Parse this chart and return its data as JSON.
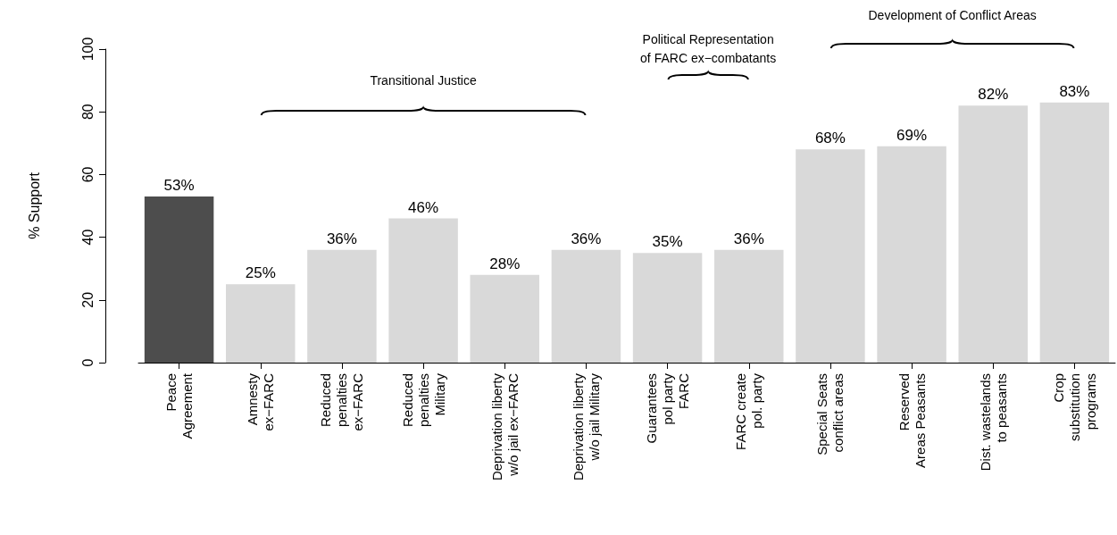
{
  "chart_data": {
    "type": "bar",
    "ylabel": "% Support",
    "categories": [
      "Peace\nAgreement",
      "Amnesty\nex−FARC",
      "Reduced\npenalties\nex−FARC",
      "Reduced\npenalties\nMilitary",
      "Deprivation liberty\nw/o jail ex−FARC",
      "Deprivation liberty\nw/o jail Military",
      "Guarantees\npol party\nFARC",
      "FARC create\npol. party",
      "Special Seats\nconflict areas",
      "Reserved\nAreas Peasants",
      "Dist. wastelands\nto peasants",
      "Crop\nsubstitution\nprograms"
    ],
    "values": [
      53,
      25,
      36,
      46,
      28,
      36,
      35,
      36,
      68,
      69,
      82,
      83
    ],
    "value_labels": [
      "53%",
      "25%",
      "36%",
      "46%",
      "28%",
      "36%",
      "35%",
      "36%",
      "68%",
      "69%",
      "82%",
      "83%"
    ],
    "colors": [
      "#4d4d4d",
      "#d9d9d9",
      "#d9d9d9",
      "#d9d9d9",
      "#d9d9d9",
      "#d9d9d9",
      "#d9d9d9",
      "#d9d9d9",
      "#d9d9d9",
      "#d9d9d9",
      "#d9d9d9",
      "#d9d9d9"
    ],
    "ylim": [
      0,
      100
    ],
    "yticks": [
      0,
      20,
      40,
      60,
      80,
      100
    ],
    "grid": false,
    "annotations": [
      "Transitional Justice",
      "Political Representation\nof FARC ex−combatants",
      "Development of Conflict Areas"
    ]
  }
}
